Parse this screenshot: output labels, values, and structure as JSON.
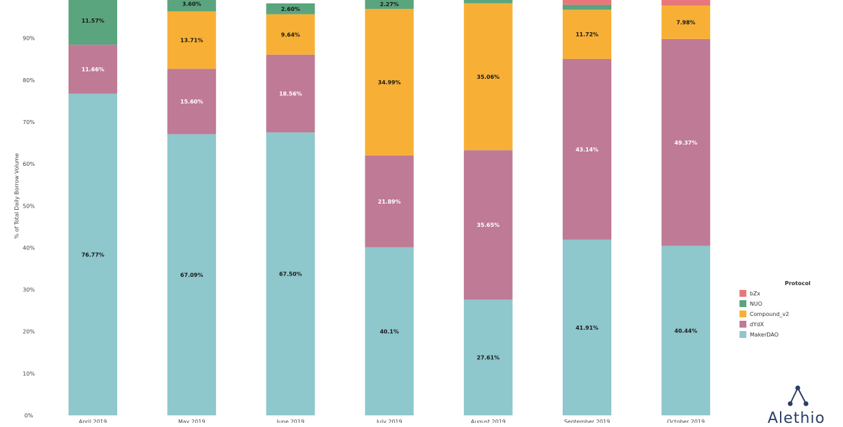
{
  "chart_data": {
    "type": "bar",
    "stacked": true,
    "categories": [
      "April 2019",
      "May 2019",
      "June 2019",
      "July 2019",
      "August 2019",
      "September 2019",
      "October 2019"
    ],
    "ylabel": "% of Total Daily Borrow Volume",
    "xlabel": "",
    "ylim": [
      0,
      100
    ],
    "yticks": [
      "0%",
      "10%",
      "20%",
      "30%",
      "40%",
      "50%",
      "60%",
      "70%",
      "80%",
      "90%"
    ],
    "legend_title": "Protocol",
    "legend_position": "right",
    "series": [
      {
        "name": "MakerDAO",
        "color": "#8ec7cc",
        "values": [
          76.77,
          67.09,
          67.5,
          40.1,
          27.61,
          41.91,
          40.44
        ],
        "labels": [
          "76.77%",
          "67.09%",
          "67.50%",
          "40.1%",
          "27.61%",
          "41.91%",
          "40.44%"
        ]
      },
      {
        "name": "dYdX",
        "color": "#bf7a96",
        "values": [
          11.66,
          15.6,
          18.56,
          21.89,
          35.65,
          43.14,
          49.37
        ],
        "labels": [
          "11.66%",
          "15.60%",
          "18.56%",
          "21.89%",
          "35.65%",
          "43.14%",
          "49.37%"
        ]
      },
      {
        "name": "Compound_v2",
        "color": "#f7b035",
        "values": [
          0,
          13.71,
          9.64,
          34.99,
          35.06,
          11.72,
          7.98
        ],
        "labels": [
          "",
          "13.71%",
          "9.64%",
          "34.99%",
          "35.06%",
          "11.72%",
          "7.98%"
        ]
      },
      {
        "name": "NUO",
        "color": "#5aa57e",
        "values": [
          11.57,
          3.6,
          2.6,
          2.27,
          0.8,
          1.2,
          0
        ],
        "labels": [
          "11.57%",
          "3.60%",
          "2.60%",
          "2.27%",
          "",
          "",
          ""
        ]
      },
      {
        "name": "bZx",
        "color": "#e7777b",
        "values": [
          0,
          0,
          0,
          0,
          0,
          1.5,
          1.5
        ],
        "labels": [
          "",
          "",
          "",
          "",
          "",
          "",
          ""
        ]
      }
    ]
  },
  "brand": {
    "logo_name": "logo-icon",
    "logo_text": "Alethio"
  }
}
